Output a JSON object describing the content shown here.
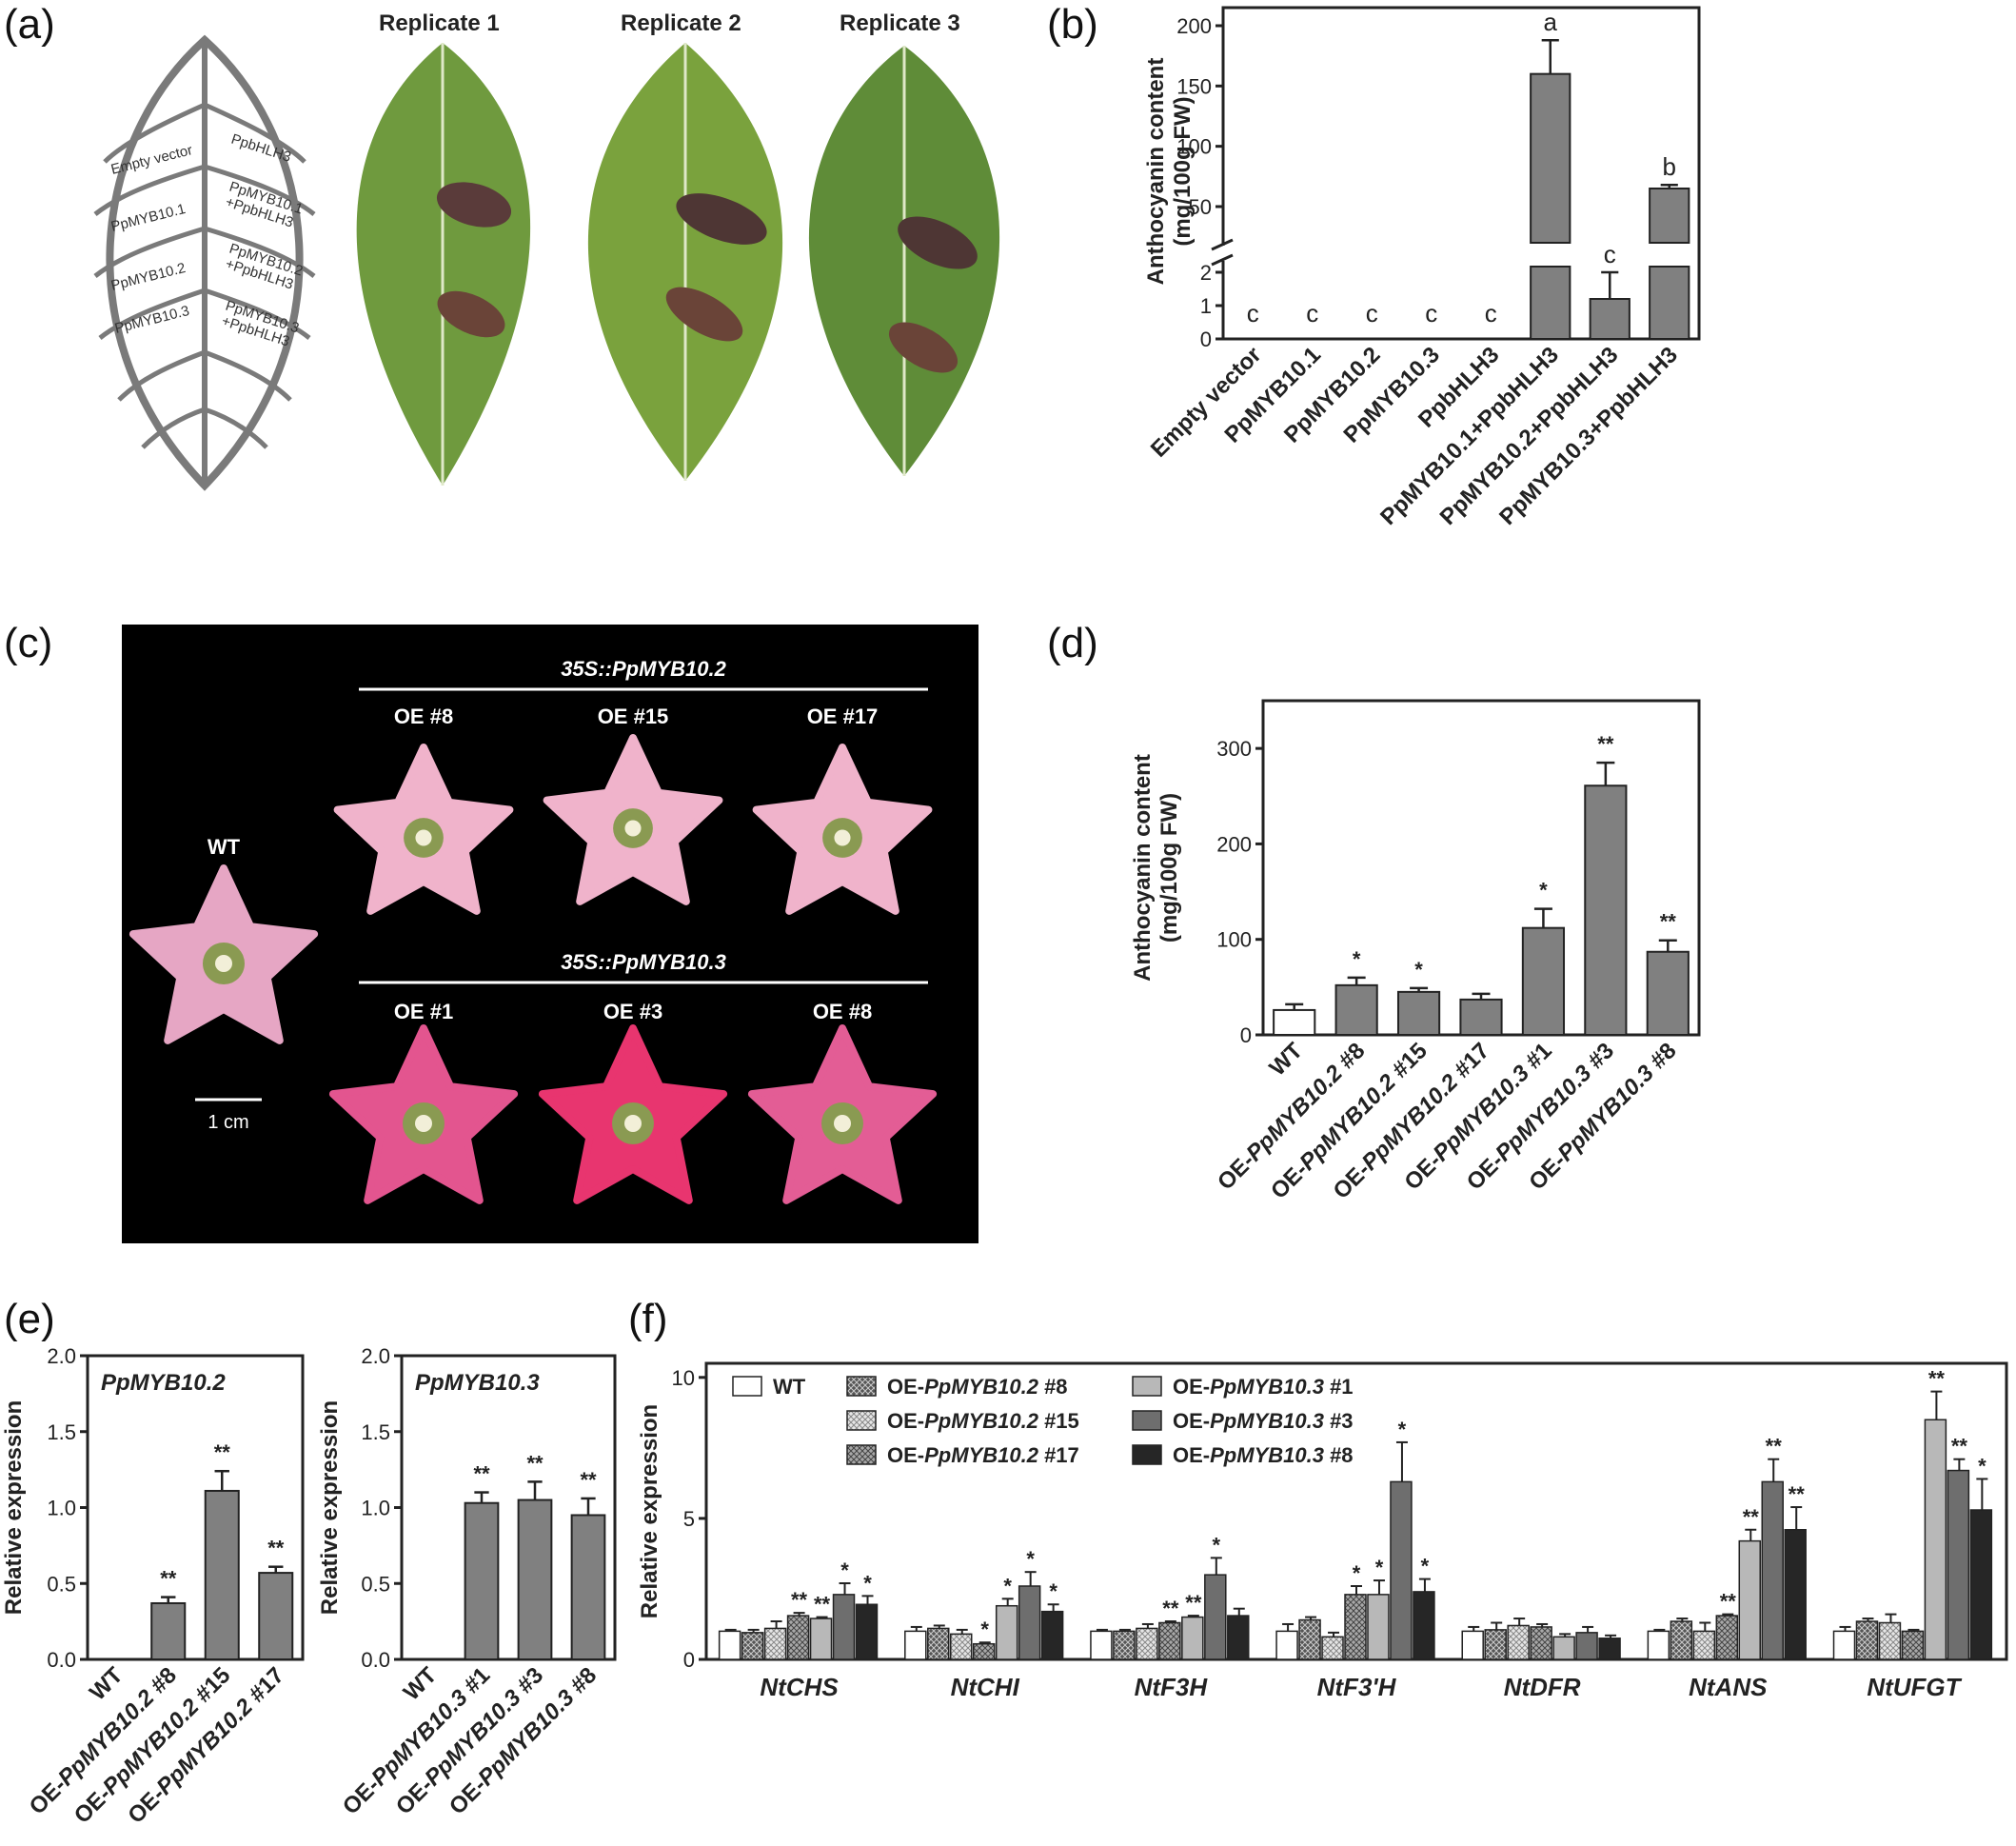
{
  "panel_labels": {
    "a": "(a)",
    "b": "(b)",
    "c": "(c)",
    "d": "(d)",
    "e": "(e)",
    "f": "(f)"
  },
  "panel_a": {
    "replicates": [
      "Replicate 1",
      "Replicate 2",
      "Replicate 3"
    ],
    "leaf_labels_left": [
      "Empty vector",
      "PpMYB10.1",
      "PpMYB10.2",
      "PpMYB10.3"
    ],
    "leaf_labels_right": [
      "PpbHLH3",
      "PpMYB10.1\n+PpbHLH3",
      "PpMYB10.2\n+PpbHLH3",
      "PpMYB10.3\n+PpbHLH3"
    ],
    "colors": {
      "leaf": "#6f9a3e",
      "leaf_dark": "#4f7a2c",
      "vein": "#dfe8c8",
      "lesion": "#5a3b3a"
    }
  },
  "panel_c": {
    "group1": "35S::PpMYB10.2",
    "group2": "35S::PpMYB10.3",
    "wt": "WT",
    "row1": [
      "OE #8",
      "OE #15",
      "OE #17"
    ],
    "row2": [
      "OE #1",
      "OE #3",
      "OE #8"
    ],
    "scale": "1 cm",
    "flower_colors": {
      "wt": "#e6a6c4",
      "row1": "#f0b3cb",
      "row2": [
        "#e3558f",
        "#e8356f",
        "#e35d95"
      ],
      "center": "#8a9a52"
    }
  },
  "chart_data": [
    {
      "panel": "b",
      "type": "bar",
      "ylabel": "Anthocyanin content\n(mg/100g FW)",
      "broken_axis": true,
      "lower_ylim": [
        0,
        2
      ],
      "upper_ylim": [
        20,
        215
      ],
      "lower_ticks": [
        "0",
        "1",
        "2"
      ],
      "upper_ticks": [
        "50",
        "100",
        "150",
        "200"
      ],
      "categories": [
        "Empty vector",
        "PpMYB10.1",
        "PpMYB10.2",
        "PpMYB10.3",
        "PpbHLH3",
        "PpMYB10.1+PpbHLH3",
        "PpMYB10.2+PpbHLH3",
        "PpMYB10.3+PpbHLH3"
      ],
      "values": [
        0,
        0,
        0,
        0,
        0,
        160,
        1.2,
        65
      ],
      "errors": [
        0,
        0,
        0,
        0,
        0,
        28,
        0.8,
        3
      ],
      "significance": [
        "c",
        "c",
        "c",
        "c",
        "c",
        "a",
        "c",
        "b"
      ],
      "bar_color": "#808080"
    },
    {
      "panel": "d",
      "type": "bar",
      "ylabel": "Anthocyanin content\n(mg/100g FW)",
      "ylim": [
        0,
        350
      ],
      "yticks": [
        "0",
        "100",
        "200",
        "300"
      ],
      "categories": [
        "WT",
        "OE-PpMYB10.2 #8",
        "OE-PpMYB10.2 #15",
        "OE-PpMYB10.2 #17",
        "OE-PpMYB10.3 #1",
        "OE-PpMYB10.3 #3",
        "OE-PpMYB10.3 #8"
      ],
      "values": [
        26,
        52,
        45,
        37,
        112,
        261,
        87
      ],
      "errors": [
        6,
        8,
        4,
        6,
        20,
        24,
        12
      ],
      "stars": [
        "",
        "*",
        "*",
        "",
        "*",
        "**",
        "**"
      ],
      "colors": [
        "#ffffff",
        "#808080",
        "#808080",
        "#808080",
        "#808080",
        "#808080",
        "#808080"
      ]
    },
    {
      "panel": "e1",
      "type": "bar",
      "title": "PpMYB10.2",
      "ylabel": "Relative expression",
      "ylim": [
        0,
        2.0
      ],
      "yticks": [
        "0.0",
        "0.5",
        "1.0",
        "1.5",
        "2.0"
      ],
      "categories": [
        "WT",
        "OE-PpMYB10.2 #8",
        "OE-PpMYB10.2 #15",
        "OE-PpMYB10.2 #17"
      ],
      "values": [
        0,
        0.37,
        1.11,
        0.57
      ],
      "errors": [
        0,
        0.04,
        0.13,
        0.04
      ],
      "stars": [
        "",
        "**",
        "**",
        "**"
      ]
    },
    {
      "panel": "e2",
      "type": "bar",
      "title": "PpMYB10.3",
      "ylabel": "Relative expression",
      "ylim": [
        0,
        2.0
      ],
      "yticks": [
        "0.0",
        "0.5",
        "1.0",
        "1.5",
        "2.0"
      ],
      "categories": [
        "WT",
        "OE-PpMYB10.3 #1",
        "OE-PpMYB10.3 #3",
        "OE-PpMYB10.3 #8"
      ],
      "values": [
        0,
        1.03,
        1.05,
        0.95
      ],
      "errors": [
        0,
        0.07,
        0.12,
        0.11
      ],
      "stars": [
        "",
        "**",
        "**",
        "**"
      ]
    },
    {
      "panel": "f",
      "type": "bar",
      "ylabel": "Relative expression",
      "ylim": [
        0,
        10.5
      ],
      "yticks": [
        "0",
        "5",
        "10"
      ],
      "categories": [
        "NtCHS",
        "NtCHI",
        "NtF3H",
        "NtF3'H",
        "NtDFR",
        "NtANS",
        "NtUFGT"
      ],
      "series": [
        {
          "name": "WT",
          "values": [
            1.0,
            1.0,
            1.0,
            1.0,
            1.0,
            1.0,
            1.0
          ],
          "errors": [
            0.05,
            0.15,
            0.05,
            0.25,
            0.15,
            0.05,
            0.15
          ],
          "stars": [
            "",
            "",
            "",
            "",
            "",
            "",
            ""
          ]
        },
        {
          "name": "OE-PpMYB10.2 #8",
          "values": [
            0.95,
            1.1,
            1.0,
            1.4,
            1.05,
            1.35,
            1.35
          ],
          "errors": [
            0.1,
            0.1,
            0.05,
            0.1,
            0.25,
            0.1,
            0.1
          ],
          "stars": [
            "",
            "",
            "",
            "",
            "",
            "",
            ""
          ]
        },
        {
          "name": "OE-PpMYB10.2 #15",
          "values": [
            1.1,
            0.9,
            1.1,
            0.8,
            1.2,
            1.0,
            1.3
          ],
          "errors": [
            0.25,
            0.15,
            0.15,
            0.15,
            0.25,
            0.3,
            0.3
          ],
          "stars": [
            "",
            "",
            "",
            "",
            "",
            "",
            ""
          ]
        },
        {
          "name": "OE-PpMYB10.2 #17",
          "values": [
            1.55,
            0.55,
            1.3,
            2.3,
            1.15,
            1.55,
            1.0
          ],
          "errors": [
            0.1,
            0.05,
            0.05,
            0.3,
            0.1,
            0.05,
            0.05
          ],
          "stars": [
            "**",
            "*",
            "**",
            "*",
            "",
            "**",
            ""
          ]
        },
        {
          "name": "OE-PpMYB10.3 #1",
          "values": [
            1.45,
            1.9,
            1.5,
            2.3,
            0.8,
            4.2,
            8.5
          ],
          "errors": [
            0.05,
            0.25,
            0.05,
            0.5,
            0.1,
            0.4,
            1.0
          ],
          "stars": [
            "**",
            "*",
            "**",
            "*",
            "",
            "**",
            "**"
          ]
        },
        {
          "name": "OE-PpMYB10.3 #3",
          "values": [
            2.3,
            2.6,
            3.0,
            6.3,
            0.95,
            6.3,
            6.7
          ],
          "errors": [
            0.4,
            0.5,
            0.6,
            1.4,
            0.2,
            0.8,
            0.4
          ],
          "stars": [
            "*",
            "*",
            "*",
            "*",
            "",
            "**",
            "**"
          ]
        },
        {
          "name": "OE-PpMYB10.3 #8",
          "values": [
            1.95,
            1.7,
            1.55,
            2.4,
            0.75,
            4.6,
            5.3
          ],
          "errors": [
            0.3,
            0.25,
            0.25,
            0.45,
            0.1,
            0.8,
            1.1
          ],
          "stars": [
            "*",
            "*",
            "",
            "*",
            "",
            "**",
            "*"
          ]
        }
      ],
      "fills": [
        "white",
        "hatch-dark",
        "hatch-light",
        "hatch-mid",
        "#b8b8b8",
        "#6e6e6e",
        "#262626"
      ],
      "legend_prefix": [
        "WT",
        "OE-",
        "OE-",
        "OE-",
        "OE-",
        "OE-",
        "OE-"
      ],
      "legend_italic": [
        "",
        "PpMYB10.2",
        "PpMYB10.2",
        "PpMYB10.2",
        "PpMYB10.3",
        "PpMYB10.3",
        "PpMYB10.3"
      ],
      "legend_suffix": [
        "",
        " #8",
        " #15",
        " #17",
        " #1",
        " #3",
        " #8"
      ]
    }
  ]
}
